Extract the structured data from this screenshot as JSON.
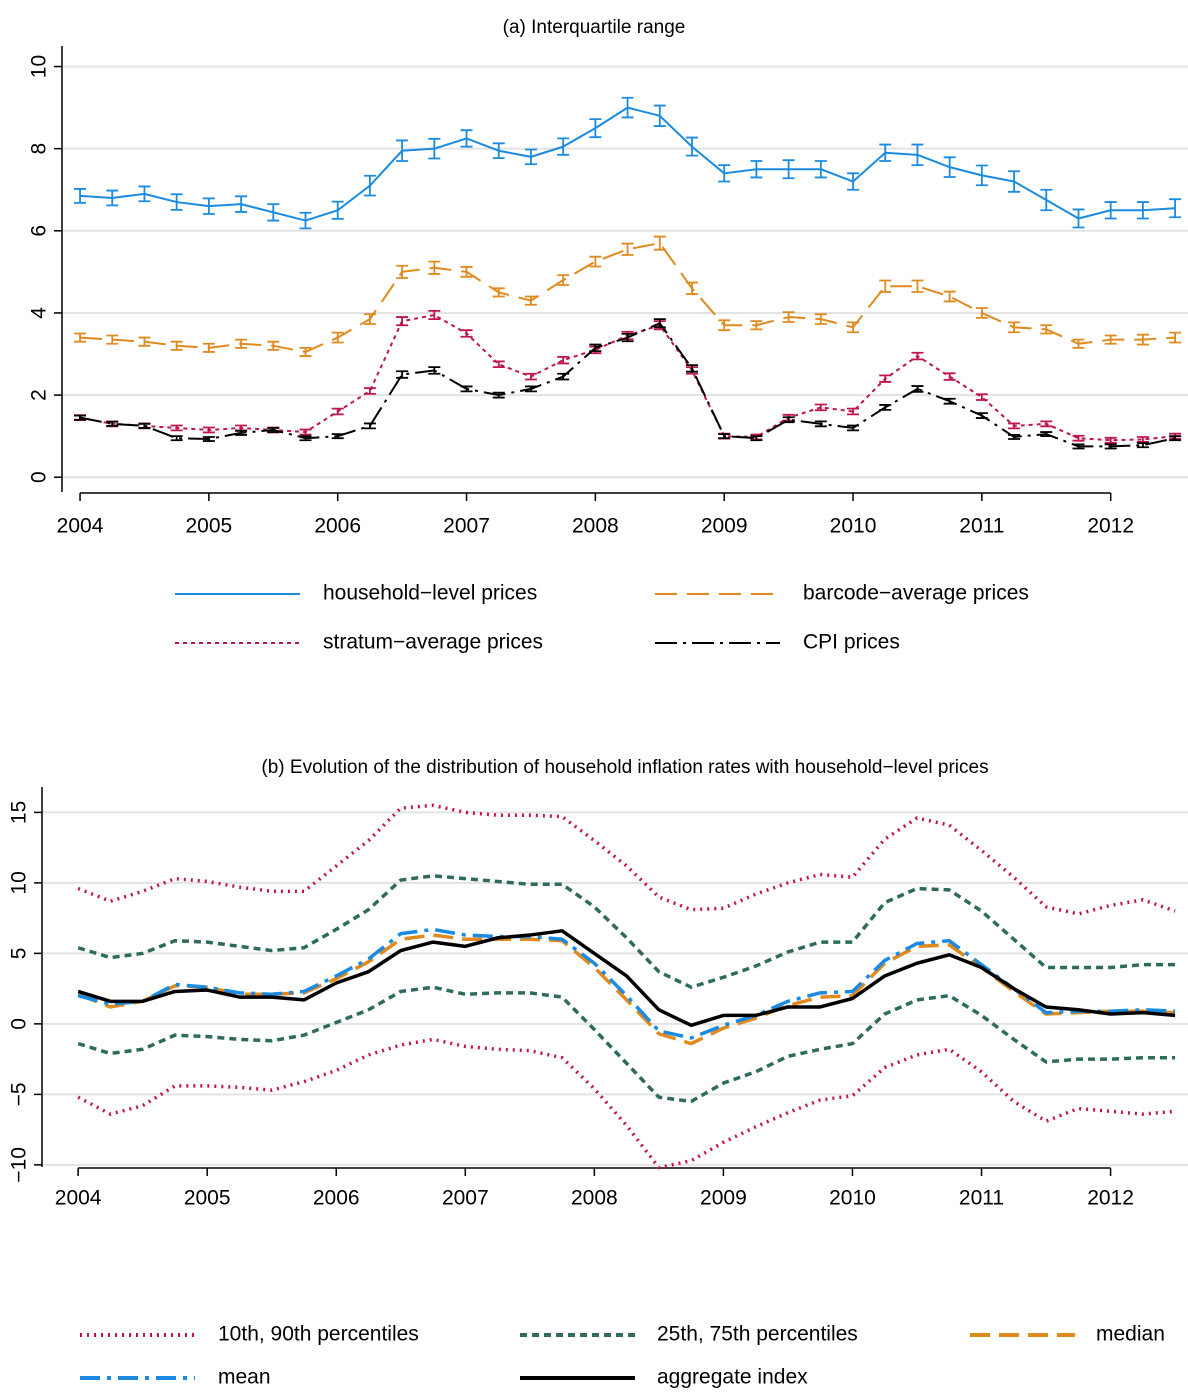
{
  "chart_data": [
    {
      "type": "line",
      "title": "(a) Interquartile range",
      "legend": "bottom",
      "grid": true,
      "x": [
        2004,
        2004.25,
        2004.5,
        2004.75,
        2005,
        2005.25,
        2005.5,
        2005.75,
        2006,
        2006.25,
        2006.5,
        2006.75,
        2007,
        2007.25,
        2007.5,
        2007.75,
        2008,
        2008.25,
        2008.5,
        2008.75,
        2009,
        2009.25,
        2009.5,
        2009.75,
        2010,
        2010.25,
        2010.5,
        2010.75,
        2011,
        2011.25,
        2011.5,
        2011.75,
        2012,
        2012.25,
        2012.5
      ],
      "xlim": [
        2003.86,
        2012.6
      ],
      "xticks": [
        2004,
        2005,
        2006,
        2007,
        2008,
        2009,
        2010,
        2011,
        2012
      ],
      "ylim": [
        -0.36,
        10.5
      ],
      "yticks": [
        0,
        2,
        4,
        6,
        8,
        10
      ],
      "series": [
        {
          "name": "household−level prices",
          "color": "#1a8be0",
          "dash": "solid",
          "values": [
            6.85,
            6.8,
            6.9,
            6.7,
            6.6,
            6.65,
            6.45,
            6.25,
            6.5,
            7.1,
            7.95,
            8.0,
            8.25,
            7.95,
            7.8,
            8.05,
            8.5,
            9.0,
            8.8,
            8.05,
            7.4,
            7.5,
            7.5,
            7.5,
            7.2,
            7.9,
            7.85,
            7.55,
            7.35,
            7.2,
            6.75,
            6.3,
            6.5,
            6.5,
            6.55
          ],
          "errors": [
            0.17,
            0.18,
            0.18,
            0.19,
            0.19,
            0.19,
            0.2,
            0.19,
            0.21,
            0.24,
            0.25,
            0.24,
            0.2,
            0.18,
            0.18,
            0.2,
            0.22,
            0.24,
            0.25,
            0.22,
            0.2,
            0.2,
            0.22,
            0.2,
            0.2,
            0.2,
            0.25,
            0.24,
            0.24,
            0.25,
            0.25,
            0.22,
            0.2,
            0.2,
            0.22
          ]
        },
        {
          "name": "barcode−average prices",
          "color": "#e08a1e",
          "dash": "dashed",
          "values": [
            3.4,
            3.35,
            3.3,
            3.2,
            3.15,
            3.25,
            3.2,
            3.05,
            3.4,
            3.85,
            5.0,
            5.1,
            5.0,
            4.5,
            4.3,
            4.8,
            5.25,
            5.55,
            5.7,
            4.6,
            3.7,
            3.7,
            3.9,
            3.85,
            3.65,
            4.65,
            4.65,
            4.4,
            4.0,
            3.65,
            3.6,
            3.25,
            3.35,
            3.35,
            3.4
          ],
          "errors": [
            0.1,
            0.1,
            0.1,
            0.1,
            0.1,
            0.1,
            0.1,
            0.1,
            0.12,
            0.12,
            0.15,
            0.15,
            0.12,
            0.1,
            0.1,
            0.12,
            0.12,
            0.14,
            0.16,
            0.14,
            0.12,
            0.1,
            0.12,
            0.12,
            0.12,
            0.14,
            0.14,
            0.12,
            0.12,
            0.12,
            0.1,
            0.1,
            0.1,
            0.12,
            0.12
          ]
        },
        {
          "name": "stratum−average prices",
          "color": "#c0144a",
          "dash": "dotted",
          "values": [
            1.45,
            1.3,
            1.25,
            1.2,
            1.15,
            1.2,
            1.15,
            1.1,
            1.6,
            2.1,
            3.8,
            3.95,
            3.5,
            2.75,
            2.45,
            2.85,
            3.1,
            3.45,
            3.7,
            2.6,
            1.0,
            0.98,
            1.45,
            1.7,
            1.6,
            2.4,
            2.95,
            2.45,
            1.95,
            1.25,
            1.3,
            0.95,
            0.9,
            0.92,
            1.0
          ],
          "errors": [
            0.06,
            0.06,
            0.06,
            0.06,
            0.06,
            0.06,
            0.06,
            0.06,
            0.07,
            0.07,
            0.1,
            0.1,
            0.08,
            0.07,
            0.07,
            0.08,
            0.08,
            0.09,
            0.1,
            0.08,
            0.06,
            0.06,
            0.07,
            0.07,
            0.07,
            0.08,
            0.08,
            0.08,
            0.07,
            0.06,
            0.06,
            0.06,
            0.06,
            0.06,
            0.06
          ]
        },
        {
          "name": "CPI prices",
          "color": "#000000",
          "dash": "dashdot",
          "values": [
            1.45,
            1.3,
            1.25,
            0.95,
            0.93,
            1.08,
            1.15,
            0.95,
            1.0,
            1.25,
            2.5,
            2.6,
            2.15,
            2.0,
            2.15,
            2.45,
            3.15,
            3.4,
            3.75,
            2.65,
            1.0,
            0.95,
            1.4,
            1.3,
            1.2,
            1.7,
            2.15,
            1.85,
            1.5,
            0.98,
            1.05,
            0.75,
            0.75,
            0.78,
            0.95
          ],
          "errors": [
            0.05,
            0.05,
            0.05,
            0.05,
            0.05,
            0.05,
            0.05,
            0.05,
            0.05,
            0.06,
            0.08,
            0.08,
            0.06,
            0.06,
            0.06,
            0.07,
            0.08,
            0.09,
            0.1,
            0.08,
            0.05,
            0.05,
            0.06,
            0.06,
            0.06,
            0.06,
            0.07,
            0.06,
            0.06,
            0.05,
            0.05,
            0.05,
            0.05,
            0.05,
            0.05
          ]
        }
      ]
    },
    {
      "type": "line",
      "title": "(b) Evolution of the distribution of household inflation rates with household−level prices",
      "legend": "bottom",
      "grid": true,
      "x": [
        2004,
        2004.25,
        2004.5,
        2004.75,
        2005,
        2005.25,
        2005.5,
        2005.75,
        2006,
        2006.25,
        2006.5,
        2006.75,
        2007,
        2007.25,
        2007.5,
        2007.75,
        2008,
        2008.25,
        2008.5,
        2008.75,
        2009,
        2009.25,
        2009.5,
        2009.75,
        2010,
        2010.25,
        2010.5,
        2010.75,
        2011,
        2011.25,
        2011.5,
        2011.75,
        2012,
        2012.25,
        2012.5
      ],
      "xlim": [
        2003.72,
        2012.6
      ],
      "xticks": [
        2004,
        2005,
        2006,
        2007,
        2008,
        2009,
        2010,
        2011,
        2012
      ],
      "ylim": [
        -10.15,
        16.8
      ],
      "yticks": [
        {
          "value": -10,
          "label": "−10"
        },
        {
          "value": -5,
          "label": "−5"
        },
        0,
        5,
        10,
        15
      ],
      "series": [
        {
          "name": "10th, 90th percentiles",
          "color": "#c0144a",
          "dash": "dotted",
          "values": [
            [
              -5.2,
              -6.4,
              -5.8,
              -4.4,
              -4.4,
              -4.5,
              -4.7,
              -4.1,
              -3.3,
              -2.2,
              -1.5,
              -1.1,
              -1.6,
              -1.8,
              -1.9,
              -2.4,
              -4.6,
              -7.2,
              -10.2,
              -9.7,
              -8.4,
              -7.3,
              -6.3,
              -5.4,
              -5.1,
              -3.1,
              -2.2,
              -1.8,
              -3.4,
              -5.5,
              -6.9,
              -6.0,
              -6.2,
              -6.4,
              -6.2
            ],
            [
              9.6,
              8.7,
              9.4,
              10.3,
              10.1,
              9.7,
              9.4,
              9.4,
              11.2,
              13.0,
              15.3,
              15.5,
              15.0,
              14.8,
              14.8,
              14.7,
              13.0,
              11.2,
              9.0,
              8.1,
              8.2,
              9.2,
              10.0,
              10.6,
              10.4,
              13.1,
              14.6,
              14.1,
              12.3,
              10.4,
              8.3,
              7.8,
              8.4,
              8.8,
              8.0
            ]
          ]
        },
        {
          "name": "25th, 75th percentiles",
          "color": "#2e6b5e",
          "dash": "dashed",
          "values": [
            [
              -1.4,
              -2.1,
              -1.8,
              -0.8,
              -0.9,
              -1.1,
              -1.2,
              -0.8,
              0.1,
              1.0,
              2.3,
              2.6,
              2.1,
              2.2,
              2.2,
              1.9,
              -0.4,
              -2.8,
              -5.2,
              -5.5,
              -4.2,
              -3.4,
              -2.3,
              -1.8,
              -1.4,
              0.7,
              1.7,
              2.0,
              0.6,
              -1.1,
              -2.7,
              -2.5,
              -2.5,
              -2.4,
              -2.4
            ],
            [
              5.4,
              4.7,
              5.0,
              5.9,
              5.8,
              5.5,
              5.2,
              5.4,
              6.7,
              8.1,
              10.2,
              10.5,
              10.3,
              10.1,
              9.9,
              9.9,
              8.3,
              6.1,
              3.7,
              2.6,
              3.3,
              4.1,
              5.1,
              5.8,
              5.8,
              8.6,
              9.6,
              9.5,
              8.0,
              6.0,
              4.0,
              4.0,
              4.0,
              4.2,
              4.2
            ]
          ]
        },
        {
          "name": "median",
          "color": "#e08a1e",
          "dash": "longdash",
          "values": [
            2.1,
            1.2,
            1.6,
            2.7,
            2.6,
            2.1,
            2.1,
            2.2,
            3.2,
            4.4,
            6.0,
            6.3,
            6.0,
            6.0,
            6.0,
            5.9,
            4.0,
            1.7,
            -0.7,
            -1.4,
            -0.3,
            0.4,
            1.3,
            1.9,
            2.0,
            4.3,
            5.5,
            5.6,
            4.0,
            2.3,
            0.7,
            0.8,
            0.9,
            0.9,
            0.8
          ]
        },
        {
          "name": "mean",
          "color": "#1a8be0",
          "dash": "dashdot",
          "values": [
            2.0,
            1.4,
            1.6,
            2.8,
            2.6,
            2.2,
            2.1,
            2.3,
            3.4,
            4.6,
            6.4,
            6.7,
            6.3,
            6.2,
            6.2,
            6.0,
            4.3,
            2.0,
            -0.5,
            -1.0,
            -0.1,
            0.6,
            1.6,
            2.2,
            2.3,
            4.5,
            5.7,
            5.9,
            4.2,
            2.5,
            0.8,
            0.9,
            0.9,
            1.0,
            0.9
          ]
        },
        {
          "name": "aggregate index",
          "color": "#000000",
          "dash": "solid",
          "values": [
            2.3,
            1.6,
            1.6,
            2.3,
            2.4,
            1.9,
            1.9,
            1.7,
            2.9,
            3.7,
            5.2,
            5.8,
            5.5,
            6.1,
            6.3,
            6.6,
            5.0,
            3.4,
            1.0,
            -0.1,
            0.6,
            0.6,
            1.2,
            1.2,
            1.8,
            3.4,
            4.3,
            4.9,
            4.0,
            2.5,
            1.2,
            1.0,
            0.7,
            0.8,
            0.6
          ]
        }
      ]
    }
  ]
}
